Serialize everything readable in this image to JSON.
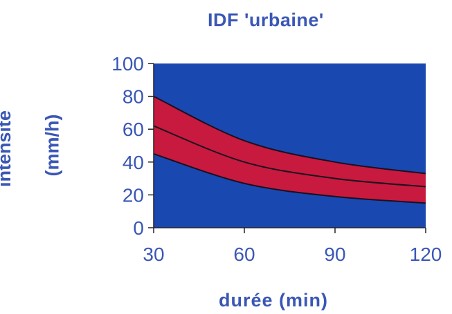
{
  "chart_data": {
    "type": "area",
    "title": "IDF 'urbaine'",
    "xlabel": "durée (min)",
    "ylabel_line1": "intensité",
    "ylabel_line2": "(mm/h)",
    "x": [
      30,
      60,
      90,
      120
    ],
    "xticks": [
      "30",
      "60",
      "90",
      "120"
    ],
    "yticks": [
      "0",
      "20",
      "40",
      "60",
      "80",
      "100"
    ],
    "xlim": [
      30,
      120
    ],
    "ylim": [
      0,
      100
    ],
    "series": [
      {
        "values": [
          45,
          27,
          19,
          15
        ]
      },
      {
        "values": [
          62,
          40,
          30,
          25
        ]
      },
      {
        "values": [
          80,
          53,
          40,
          33
        ]
      }
    ],
    "colors": {
      "plot_background": "#1948b0",
      "band_fill": "#c8193f",
      "lines": "#1a1020",
      "text": "#3a57b5"
    }
  }
}
